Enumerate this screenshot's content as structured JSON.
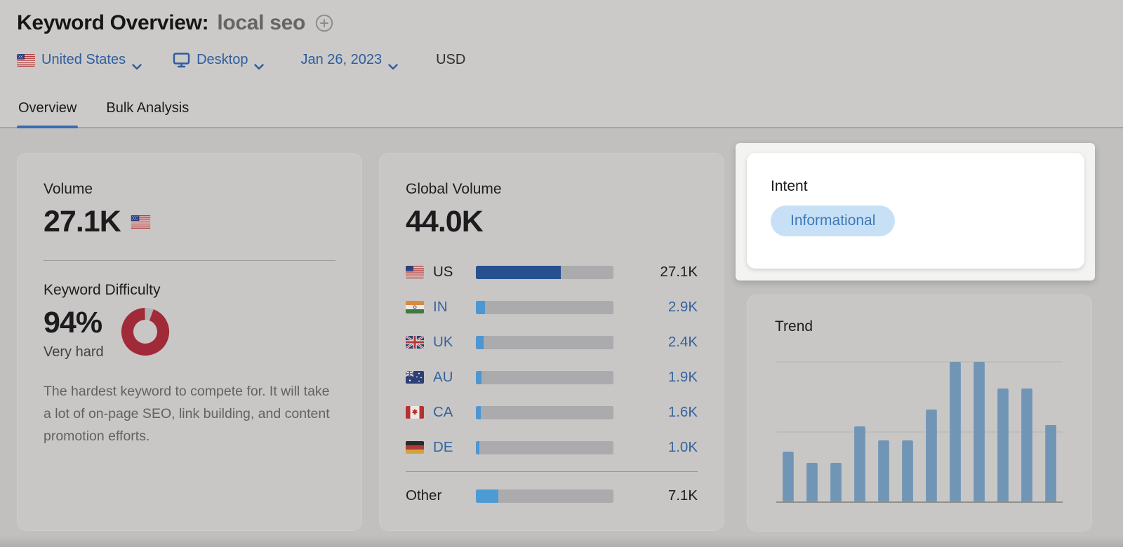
{
  "header": {
    "title_prefix": "Keyword Overview:",
    "keyword": "local seo",
    "filters": {
      "country": "United States",
      "device": "Desktop",
      "date": "Jan 26, 2023",
      "currency": "USD"
    },
    "tabs": [
      {
        "label": "Overview",
        "active": true
      },
      {
        "label": "Bulk Analysis",
        "active": false
      }
    ]
  },
  "volume_card": {
    "label": "Volume",
    "value": "27.1K",
    "kd_label": "Keyword Difficulty",
    "kd_value": "94%",
    "kd_percent": 94,
    "kd_level": "Very hard",
    "kd_description": "The hardest keyword to compete for. It will take a lot of on-page SEO, link building, and content promotion efforts."
  },
  "global_volume_card": {
    "label": "Global Volume",
    "value": "44.0K",
    "total": 44000,
    "rows": [
      {
        "code": "US",
        "value": "27.1K",
        "amount": 27100,
        "bar_pct": 61.6,
        "dark": true
      },
      {
        "code": "IN",
        "value": "2.9K",
        "amount": 2900,
        "bar_pct": 6.6
      },
      {
        "code": "UK",
        "value": "2.4K",
        "amount": 2400,
        "bar_pct": 5.5
      },
      {
        "code": "AU",
        "value": "1.9K",
        "amount": 1900,
        "bar_pct": 4.3
      },
      {
        "code": "CA",
        "value": "1.6K",
        "amount": 1600,
        "bar_pct": 3.6
      },
      {
        "code": "DE",
        "value": "1.0K",
        "amount": 1000,
        "bar_pct": 2.3
      }
    ],
    "other_row": {
      "label": "Other",
      "value": "7.1K",
      "amount": 7100,
      "bar_pct": 16.1
    }
  },
  "intent_card": {
    "label": "Intent",
    "badge": "Informational"
  },
  "trend_card": {
    "label": "Trend"
  },
  "chart_data": [
    {
      "type": "bar",
      "title": "Trend",
      "xlabel": "",
      "ylabel": "",
      "categories": [
        "1",
        "2",
        "3",
        "4",
        "5",
        "6",
        "7",
        "8",
        "9",
        "10",
        "11",
        "12"
      ],
      "values": [
        0.36,
        0.28,
        0.28,
        0.54,
        0.44,
        0.44,
        0.66,
        1.0,
        1.0,
        0.81,
        0.81,
        0.55
      ],
      "ylim": [
        0,
        1
      ],
      "gridlines": [
        0.5,
        1.0
      ],
      "legend": "none"
    },
    {
      "type": "pie",
      "title": "Keyword Difficulty",
      "categories": [
        "difficulty",
        "remainder"
      ],
      "values": [
        94,
        6
      ],
      "center_label": "94%"
    },
    {
      "type": "bar",
      "title": "Global Volume by Country",
      "categories": [
        "US",
        "IN",
        "UK",
        "AU",
        "CA",
        "DE",
        "Other"
      ],
      "values": [
        27100,
        2900,
        2400,
        1900,
        1600,
        1000,
        7100
      ],
      "xlim": [
        0,
        44000
      ]
    }
  ],
  "colors": {
    "link_blue": "#35639f",
    "filter_blue": "#2e5d9e",
    "tab_underline": "#3a6cb3",
    "bar_dark_blue": "#27508f",
    "bar_light_blue": "#4d96d1",
    "kd_red": "#a12a39",
    "donut_track": "#b3b2b3",
    "trend_bar": "#7195b5",
    "intent_pill_bg": "#c8e0f6",
    "intent_pill_text": "#3d7ab8"
  }
}
